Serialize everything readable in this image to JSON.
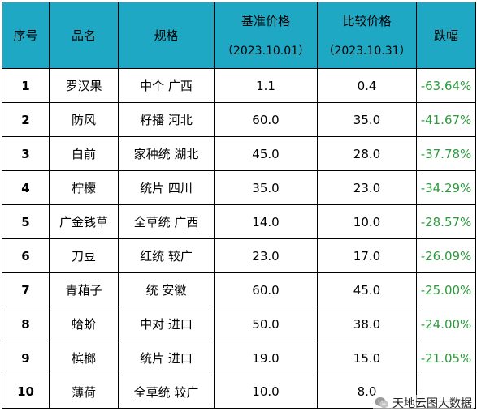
{
  "table": {
    "headers": {
      "rank": "序号",
      "name": "品名",
      "spec": "规格",
      "base_price": "基准价格",
      "base_date": "（2023.10.01）",
      "compare_price": "比较价格",
      "compare_date": "（2023.10.31）",
      "change": "跌幅"
    },
    "rows": [
      {
        "rank": "1",
        "name": "罗汉果",
        "spec": "中个 广西",
        "base": "1.1",
        "compare": "0.4",
        "change": "-63.64%"
      },
      {
        "rank": "2",
        "name": "防风",
        "spec": "籽播 河北",
        "base": "60.0",
        "compare": "35.0",
        "change": "-41.67%"
      },
      {
        "rank": "3",
        "name": "白前",
        "spec": "家种统 湖北",
        "base": "45.0",
        "compare": "28.0",
        "change": "-37.78%"
      },
      {
        "rank": "4",
        "name": "柠檬",
        "spec": "统片 四川",
        "base": "35.0",
        "compare": "23.0",
        "change": "-34.29%"
      },
      {
        "rank": "5",
        "name": "广金钱草",
        "spec": "全草统 广西",
        "base": "14.0",
        "compare": "10.0",
        "change": "-28.57%"
      },
      {
        "rank": "6",
        "name": "刀豆",
        "spec": "红统 较广",
        "base": "23.0",
        "compare": "17.0",
        "change": "-26.09%"
      },
      {
        "rank": "7",
        "name": "青葙子",
        "spec": "统 安徽",
        "base": "60.0",
        "compare": "45.0",
        "change": "-25.00%"
      },
      {
        "rank": "8",
        "name": "蛤蚧",
        "spec": "中对 进口",
        "base": "50.0",
        "compare": "38.0",
        "change": "-24.00%"
      },
      {
        "rank": "9",
        "name": "槟榔",
        "spec": "统片 进口",
        "base": "19.0",
        "compare": "15.0",
        "change": "-21.05%"
      },
      {
        "rank": "10",
        "name": "薄荷",
        "spec": "全草统 较广",
        "base": "10.0",
        "compare": "8.0",
        "change": ""
      }
    ]
  },
  "watermark": {
    "icon": "wechat-icon",
    "text": "天地云图大数据"
  },
  "colors": {
    "header_bg": "#1ea8c4",
    "change_text": "#2e9a3e"
  }
}
